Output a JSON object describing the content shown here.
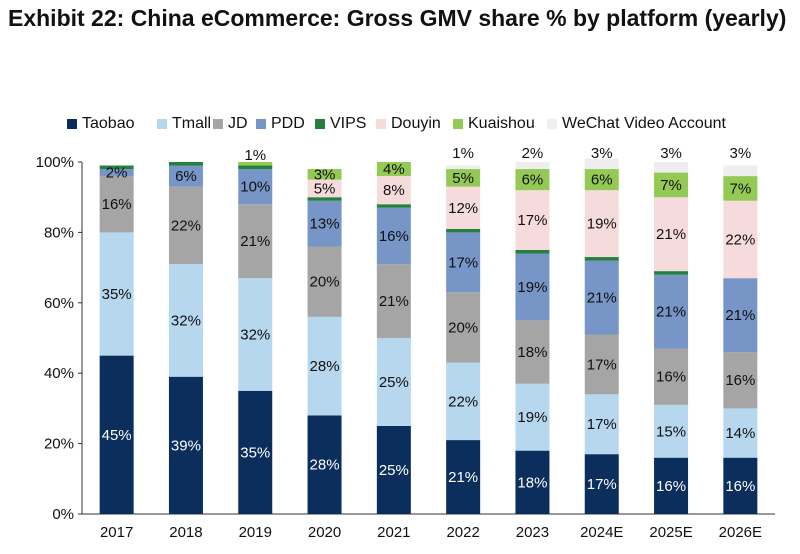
{
  "chart_data": {
    "type": "bar",
    "stacked": true,
    "title": "Exhibit 22: China eCommerce: Gross GMV share % by platform (yearly)",
    "xlabel": "",
    "ylabel": "",
    "ylim": [
      0,
      100
    ],
    "yticks": [
      "0%",
      "20%",
      "40%",
      "60%",
      "80%",
      "100%"
    ],
    "categories": [
      "2017",
      "2018",
      "2019",
      "2020",
      "2021",
      "2022",
      "2023",
      "2024E",
      "2025E",
      "2026E"
    ],
    "legend_position": "top",
    "series": [
      {
        "name": "Taobao",
        "color": "#0b2e5c",
        "values": [
          45,
          39,
          35,
          28,
          25,
          21,
          18,
          17,
          16,
          16
        ],
        "labels": [
          "45%",
          "39%",
          "35%",
          "28%",
          "25%",
          "21%",
          "18%",
          "17%",
          "16%",
          "16%"
        ]
      },
      {
        "name": "Tmall",
        "color": "#b7d7ef",
        "values": [
          35,
          32,
          32,
          28,
          25,
          22,
          19,
          17,
          15,
          14
        ],
        "labels": [
          "35%",
          "32%",
          "32%",
          "28%",
          "25%",
          "22%",
          "19%",
          "17%",
          "15%",
          "14%"
        ]
      },
      {
        "name": "JD",
        "color": "#a5a5a5",
        "values": [
          16,
          22,
          21,
          20,
          21,
          20,
          18,
          17,
          16,
          16
        ],
        "labels": [
          "16%",
          "22%",
          "21%",
          "20%",
          "21%",
          "20%",
          "18%",
          "17%",
          "16%",
          "16%"
        ]
      },
      {
        "name": "PDD",
        "color": "#7795c6",
        "values": [
          2,
          6,
          10,
          13,
          16,
          17,
          19,
          21,
          21,
          21
        ],
        "labels": [
          "2%",
          "6%",
          "10%",
          "13%",
          "16%",
          "17%",
          "19%",
          "21%",
          "21%",
          "21%"
        ]
      },
      {
        "name": "VIPS",
        "color": "#23813d",
        "values": [
          1,
          1,
          1,
          1,
          1,
          1,
          1,
          1,
          1,
          0
        ],
        "labels": [
          "",
          "",
          "",
          "",
          "",
          "",
          "",
          "",
          "",
          ""
        ]
      },
      {
        "name": "Douyin",
        "color": "#f5dbdc",
        "values": [
          0,
          0,
          0,
          5,
          8,
          12,
          17,
          19,
          21,
          22
        ],
        "labels": [
          "",
          "",
          "",
          "5%",
          "8%",
          "12%",
          "17%",
          "19%",
          "21%",
          "22%"
        ]
      },
      {
        "name": "Kuaishou",
        "color": "#93c954",
        "values": [
          0,
          0,
          1,
          3,
          4,
          5,
          6,
          6,
          7,
          7
        ],
        "labels": [
          "",
          "",
          "1%",
          "3%",
          "4%",
          "5%",
          "6%",
          "6%",
          "7%",
          "7%"
        ]
      },
      {
        "name": "WeChat Video Account",
        "color": "#eeeeee",
        "values": [
          0,
          0,
          0,
          0,
          0,
          1,
          2,
          3,
          3,
          3
        ],
        "labels": [
          "",
          "",
          "",
          "",
          "",
          "1%",
          "2%",
          "3%",
          "3%",
          "3%"
        ]
      }
    ]
  }
}
